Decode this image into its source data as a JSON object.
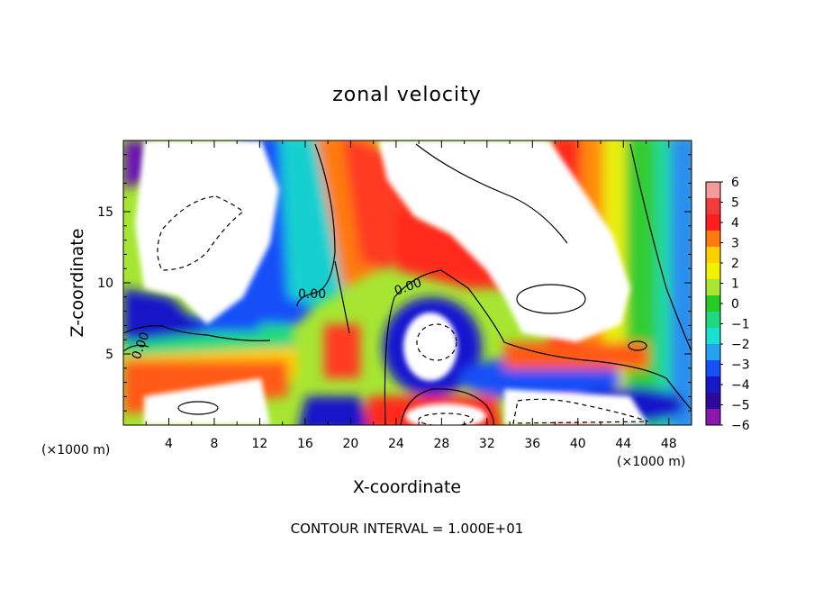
{
  "chart_data": {
    "type": "heatmap",
    "title": "zonal velocity",
    "xlabel": "X-coordinate",
    "ylabel": "Z-coordinate",
    "x_unit": "(×1000 m)",
    "y_unit": "(×1000 m)",
    "xlim": [
      0,
      50
    ],
    "ylim": [
      0,
      20
    ],
    "x_ticks": [
      "4",
      "8",
      "12",
      "16",
      "20",
      "24",
      "28",
      "32",
      "36",
      "40",
      "44",
      "48"
    ],
    "y_ticks": [
      "5",
      "10",
      "15"
    ],
    "colorbar": {
      "range": [
        -6,
        6
      ],
      "labels": [
        "6",
        "5",
        "4",
        "3",
        "2",
        "1",
        "0",
        "−1",
        "−2",
        "−3",
        "−4",
        "−5",
        "−6"
      ],
      "colors": [
        "#f49a9a",
        "#f23c3c",
        "#ff1d1d",
        "#ff7a10",
        "#ffd000",
        "#f2f200",
        "#a6e632",
        "#24cc24",
        "#20d880",
        "#16e0d0",
        "#28a0f0",
        "#1850f8",
        "#1818c8",
        "#2e0a9c",
        "#8a18b0"
      ]
    },
    "contour_labels": [
      "0.00",
      "0.00",
      "0.00"
    ],
    "footer": "CONTOUR INTERVAL = 1.000E+01",
    "grid": false,
    "legend": "colorbar-right"
  }
}
